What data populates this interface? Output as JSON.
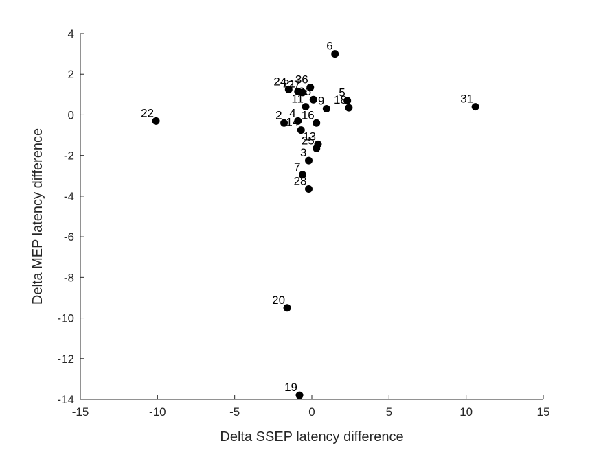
{
  "chart_data": {
    "type": "scatter",
    "title": "",
    "xlabel": "Delta SSEP latency difference",
    "ylabel": "Delta MEP latency difference",
    "xlim": [
      -15,
      15
    ],
    "ylim": [
      -14,
      4
    ],
    "xticks": [
      -15,
      -10,
      -5,
      0,
      5,
      10,
      15
    ],
    "yticks": [
      -14,
      -12,
      -10,
      -8,
      -6,
      -4,
      -2,
      0,
      2,
      4
    ],
    "grid": false,
    "marker_color": "#000000",
    "points": [
      {
        "label": "6",
        "x": 1.5,
        "y": 3.0
      },
      {
        "label": "24",
        "x": -1.5,
        "y": 1.25
      },
      {
        "label": "36",
        "x": -0.1,
        "y": 1.35
      },
      {
        "label": "21",
        "x": -0.9,
        "y": 1.15
      },
      {
        "label": "27",
        "x": -0.6,
        "y": 1.1
      },
      {
        "label": "5",
        "x": 2.3,
        "y": 0.7
      },
      {
        "label": "18",
        "x": 2.4,
        "y": 0.35
      },
      {
        "label": "26",
        "x": 0.1,
        "y": 0.75
      },
      {
        "label": "11",
        "x": -0.4,
        "y": 0.4
      },
      {
        "label": "9",
        "x": 0.95,
        "y": 0.3
      },
      {
        "label": "31",
        "x": 10.6,
        "y": 0.4
      },
      {
        "label": "22",
        "x": -10.1,
        "y": -0.3
      },
      {
        "label": "2",
        "x": -1.8,
        "y": -0.4
      },
      {
        "label": "4",
        "x": -0.9,
        "y": -0.3
      },
      {
        "label": "16",
        "x": 0.3,
        "y": -0.4
      },
      {
        "label": "14",
        "x": -0.7,
        "y": -0.75
      },
      {
        "label": "13",
        "x": 0.4,
        "y": -1.45
      },
      {
        "label": "25",
        "x": 0.3,
        "y": -1.65
      },
      {
        "label": "3",
        "x": -0.2,
        "y": -2.25
      },
      {
        "label": "7",
        "x": -0.6,
        "y": -2.95
      },
      {
        "label": "28",
        "x": -0.2,
        "y": -3.65
      },
      {
        "label": "20",
        "x": -1.6,
        "y": -9.5
      },
      {
        "label": "19",
        "x": -0.8,
        "y": -13.8
      }
    ]
  }
}
